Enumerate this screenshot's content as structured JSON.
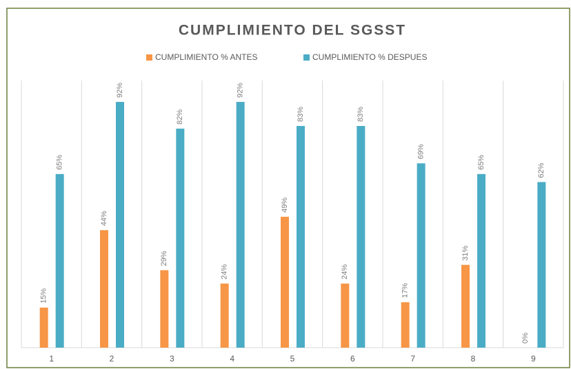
{
  "chart_data": {
    "type": "bar",
    "title": "CUMPLIMIENTO DEL SGSST",
    "categories": [
      "1",
      "2",
      "3",
      "4",
      "5",
      "6",
      "7",
      "8",
      "9"
    ],
    "series": [
      {
        "name": "CUMPLIMIENTO % ANTES",
        "color": "#f79646",
        "values": [
          15,
          44,
          29,
          24,
          49,
          24,
          17,
          31,
          0
        ],
        "value_labels": [
          "15%",
          "44%",
          "29%",
          "24%",
          "49%",
          "24%",
          "17%",
          "31%",
          "0%"
        ]
      },
      {
        "name": "CUMPLIMIENTO % DESPUES",
        "color": "#4bacc6",
        "values": [
          65,
          92,
          82,
          92,
          83,
          83,
          69,
          65,
          62
        ],
        "value_labels": [
          "65%",
          "92%",
          "82%",
          "92%",
          "83%",
          "83%",
          "69%",
          "65%",
          "62%"
        ]
      }
    ],
    "ylim": [
      0,
      100
    ]
  }
}
